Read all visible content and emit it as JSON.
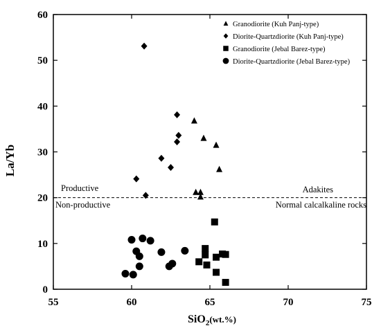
{
  "chart_data": {
    "type": "scatter",
    "title": "",
    "xlabel": "SiO2(wt.%)",
    "xlabel_main": "SiO",
    "xlabel_sub": "2",
    "xlabel_unit": "(wt.%)",
    "ylabel": "La/Yb",
    "xlim": [
      55,
      75
    ],
    "ylim": [
      0,
      60
    ],
    "xticks": [
      55,
      60,
      65,
      70,
      75
    ],
    "yticks": [
      0,
      10,
      20,
      30,
      40,
      50,
      60
    ],
    "grid": false,
    "legend_position": "top-right",
    "threshold": {
      "y": 20,
      "style": "dashed",
      "labels": {
        "above_left": "Productive",
        "below_left": "Non-productive",
        "above_right": "Adakites",
        "below_right": "Normal calcalkaline rocks"
      }
    },
    "series": [
      {
        "name": "Granodiorite (Kuh Panj-type)",
        "marker": "triangle",
        "points": [
          [
            64.0,
            36.8
          ],
          [
            64.6,
            33.0
          ],
          [
            65.4,
            31.5
          ],
          [
            65.6,
            26.2
          ],
          [
            64.1,
            21.2
          ],
          [
            64.4,
            21.2
          ],
          [
            64.4,
            20.2
          ]
        ]
      },
      {
        "name": "Diorite-Quartzdiorite (Kuh Panj-type)",
        "marker": "diamond",
        "points": [
          [
            60.8,
            53.1
          ],
          [
            62.9,
            38.1
          ],
          [
            63.0,
            33.6
          ],
          [
            62.9,
            32.2
          ],
          [
            61.9,
            28.6
          ],
          [
            62.5,
            26.6
          ],
          [
            60.3,
            24.1
          ],
          [
            60.9,
            20.5
          ]
        ]
      },
      {
        "name": "Granodiorite (Jebal Barez-type)",
        "marker": "square",
        "points": [
          [
            65.3,
            14.7
          ],
          [
            64.7,
            8.9
          ],
          [
            64.7,
            7.5
          ],
          [
            65.4,
            7.0
          ],
          [
            65.8,
            7.7
          ],
          [
            66.0,
            7.6
          ],
          [
            64.3,
            6.0
          ],
          [
            64.8,
            5.3
          ],
          [
            65.4,
            3.7
          ],
          [
            66.0,
            1.5
          ]
        ]
      },
      {
        "name": "Diorite-Quartzdiorite (Jebal Barez-type)",
        "marker": "circle",
        "points": [
          [
            60.0,
            10.8
          ],
          [
            60.7,
            11.1
          ],
          [
            61.2,
            10.6
          ],
          [
            60.3,
            8.3
          ],
          [
            60.5,
            7.2
          ],
          [
            61.9,
            8.1
          ],
          [
            63.4,
            8.4
          ],
          [
            62.6,
            5.6
          ],
          [
            62.4,
            5.0
          ],
          [
            60.5,
            5.0
          ],
          [
            59.6,
            3.4
          ],
          [
            60.1,
            3.2
          ]
        ]
      }
    ]
  }
}
